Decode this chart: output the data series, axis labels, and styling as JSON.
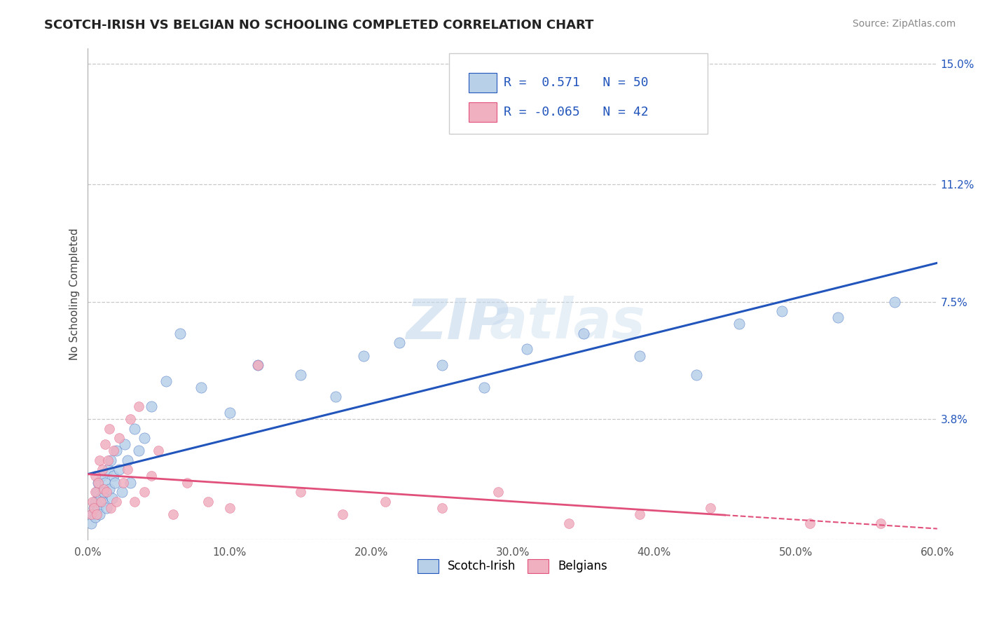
{
  "title": "SCOTCH-IRISH VS BELGIAN NO SCHOOLING COMPLETED CORRELATION CHART",
  "source": "Source: ZipAtlas.com",
  "ylabel": "No Schooling Completed",
  "xlim": [
    0.0,
    0.6
  ],
  "ylim": [
    0.0,
    0.155
  ],
  "xticks": [
    0.0,
    0.1,
    0.2,
    0.3,
    0.4,
    0.5,
    0.6
  ],
  "xticklabels": [
    "0.0%",
    "10.0%",
    "20.0%",
    "30.0%",
    "40.0%",
    "50.0%",
    "60.0%"
  ],
  "yticks": [
    0.0,
    0.038,
    0.075,
    0.112,
    0.15
  ],
  "yticklabels": [
    "",
    "3.8%",
    "7.5%",
    "11.2%",
    "15.0%"
  ],
  "grid_color": "#c8c8c8",
  "background_color": "#ffffff",
  "scotch_irish_color": "#b8d0e8",
  "belgian_color": "#f0b0c0",
  "scotch_irish_line_color": "#2255bb",
  "belgian_line_color": "#e0507a",
  "legend_scotch_r": "0.571",
  "legend_scotch_n": "50",
  "legend_belgian_r": "-0.065",
  "legend_belgian_n": "42",
  "watermark_zip": "ZIP",
  "watermark_atlas": "atlas",
  "title_fontsize": 13,
  "axis_label_fontsize": 11,
  "tick_fontsize": 11,
  "legend_fontsize": 13,
  "source_fontsize": 10,
  "dot_size_scotch": 120,
  "dot_size_belgian": 100,
  "scotch_irish_x": [
    0.002,
    0.003,
    0.004,
    0.005,
    0.005,
    0.006,
    0.007,
    0.007,
    0.008,
    0.009,
    0.01,
    0.01,
    0.011,
    0.012,
    0.013,
    0.014,
    0.015,
    0.016,
    0.017,
    0.018,
    0.019,
    0.02,
    0.022,
    0.024,
    0.026,
    0.028,
    0.03,
    0.033,
    0.036,
    0.04,
    0.045,
    0.055,
    0.065,
    0.08,
    0.1,
    0.12,
    0.15,
    0.175,
    0.195,
    0.22,
    0.25,
    0.28,
    0.31,
    0.35,
    0.39,
    0.43,
    0.46,
    0.49,
    0.53,
    0.57
  ],
  "scotch_irish_y": [
    0.005,
    0.008,
    0.01,
    0.012,
    0.007,
    0.015,
    0.01,
    0.018,
    0.008,
    0.013,
    0.012,
    0.02,
    0.015,
    0.018,
    0.01,
    0.022,
    0.016,
    0.025,
    0.013,
    0.02,
    0.018,
    0.028,
    0.022,
    0.015,
    0.03,
    0.025,
    0.018,
    0.035,
    0.028,
    0.032,
    0.042,
    0.05,
    0.065,
    0.048,
    0.04,
    0.055,
    0.052,
    0.045,
    0.058,
    0.062,
    0.055,
    0.048,
    0.06,
    0.065,
    0.058,
    0.052,
    0.068,
    0.072,
    0.07,
    0.075
  ],
  "belgian_x": [
    0.002,
    0.003,
    0.004,
    0.005,
    0.005,
    0.006,
    0.007,
    0.008,
    0.009,
    0.01,
    0.011,
    0.012,
    0.013,
    0.014,
    0.015,
    0.016,
    0.018,
    0.02,
    0.022,
    0.025,
    0.028,
    0.03,
    0.033,
    0.036,
    0.04,
    0.045,
    0.05,
    0.06,
    0.07,
    0.085,
    0.1,
    0.12,
    0.15,
    0.18,
    0.21,
    0.25,
    0.29,
    0.34,
    0.39,
    0.44,
    0.51,
    0.56
  ],
  "belgian_y": [
    0.008,
    0.012,
    0.01,
    0.015,
    0.02,
    0.008,
    0.018,
    0.025,
    0.012,
    0.022,
    0.016,
    0.03,
    0.015,
    0.025,
    0.035,
    0.01,
    0.028,
    0.012,
    0.032,
    0.018,
    0.022,
    0.038,
    0.012,
    0.042,
    0.015,
    0.02,
    0.028,
    0.008,
    0.018,
    0.012,
    0.01,
    0.055,
    0.015,
    0.008,
    0.012,
    0.01,
    0.015,
    0.005,
    0.008,
    0.01,
    0.005,
    0.005
  ]
}
